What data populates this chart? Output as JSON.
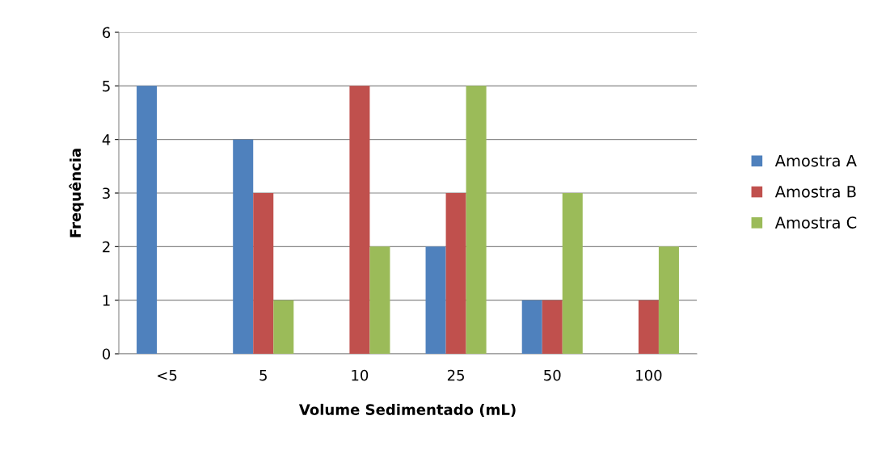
{
  "chart_data": {
    "type": "bar",
    "xlabel": "Volume Sedimentado (mL)",
    "ylabel": "Frequência",
    "categories": [
      "<5",
      "5",
      "10",
      "25",
      "50",
      "100"
    ],
    "series": [
      {
        "name": "Amostra A",
        "color": "#4f81bd",
        "values": [
          5,
          4,
          0,
          2,
          1,
          0
        ]
      },
      {
        "name": "Amostra B",
        "color": "#c0504d",
        "values": [
          0,
          3,
          5,
          3,
          1,
          1
        ]
      },
      {
        "name": "Amostra C",
        "color": "#9bbb59",
        "values": [
          0,
          1,
          2,
          5,
          3,
          2
        ]
      }
    ],
    "ylim": [
      0,
      6
    ],
    "yticks": [
      0,
      1,
      2,
      3,
      4,
      5,
      6
    ],
    "grid": "y",
    "legend": "right"
  }
}
